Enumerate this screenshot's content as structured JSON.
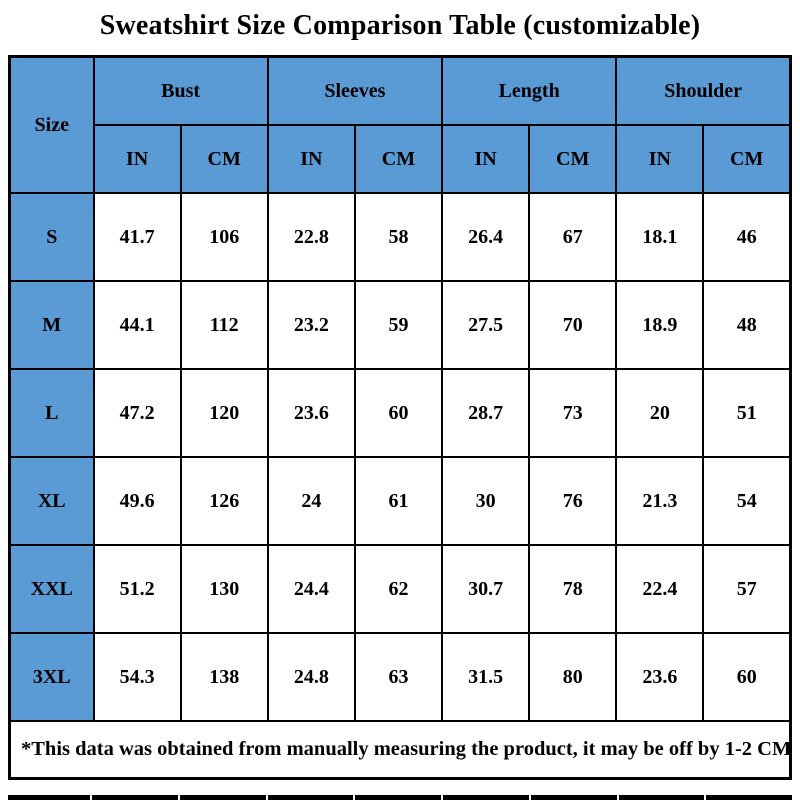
{
  "title": "Sweatshirt Size Comparison Table (customizable)",
  "colors": {
    "header_blue": "#5B9BD5",
    "border": "#000000",
    "text": "#000000",
    "background": "#ffffff"
  },
  "table": {
    "size_header": "Size",
    "groups": [
      {
        "label": "Bust"
      },
      {
        "label": "Sleeves"
      },
      {
        "label": "Length"
      },
      {
        "label": "Shoulder"
      }
    ],
    "unit_labels": [
      "IN",
      "CM"
    ],
    "rows": [
      {
        "size": "S",
        "values": [
          "41.7",
          "106",
          "22.8",
          "58",
          "26.4",
          "67",
          "18.1",
          "46"
        ]
      },
      {
        "size": "M",
        "values": [
          "44.1",
          "112",
          "23.2",
          "59",
          "27.5",
          "70",
          "18.9",
          "48"
        ]
      },
      {
        "size": "L",
        "values": [
          "47.2",
          "120",
          "23.6",
          "60",
          "28.7",
          "73",
          "20",
          "51"
        ]
      },
      {
        "size": "XL",
        "values": [
          "49.6",
          "126",
          "24",
          "61",
          "30",
          "76",
          "21.3",
          "54"
        ]
      },
      {
        "size": "XXL",
        "values": [
          "51.2",
          "130",
          "24.4",
          "62",
          "30.7",
          "78",
          "22.4",
          "57"
        ]
      },
      {
        "size": "3XL",
        "values": [
          "54.3",
          "138",
          "24.8",
          "63",
          "31.5",
          "80",
          "23.6",
          "60"
        ]
      }
    ],
    "note": "*This data was obtained from manually measuring the product, it may be off by 1-2 CM."
  },
  "chart_data": {
    "type": "table",
    "title": "Sweatshirt Size Comparison Table (customizable)",
    "columns": [
      "Size",
      "Bust IN",
      "Bust CM",
      "Sleeves IN",
      "Sleeves CM",
      "Length IN",
      "Length CM",
      "Shoulder IN",
      "Shoulder CM"
    ],
    "rows": [
      [
        "S",
        41.7,
        106,
        22.8,
        58,
        26.4,
        67,
        18.1,
        46
      ],
      [
        "M",
        44.1,
        112,
        23.2,
        59,
        27.5,
        70,
        18.9,
        48
      ],
      [
        "L",
        47.2,
        120,
        23.6,
        60,
        28.7,
        73,
        20,
        51
      ],
      [
        "XL",
        49.6,
        126,
        24,
        61,
        30,
        76,
        21.3,
        54
      ],
      [
        "XXL",
        51.2,
        130,
        24.4,
        62,
        30.7,
        78,
        22.4,
        57
      ],
      [
        "3XL",
        54.3,
        138,
        24.8,
        63,
        31.5,
        80,
        23.6,
        60
      ]
    ],
    "note": "*This data was obtained from manually measuring the product, it may be off by 1-2 CM.",
    "layout": {
      "header_fill": "#5B9BD5",
      "grid": true,
      "border_color": "#000000"
    }
  }
}
